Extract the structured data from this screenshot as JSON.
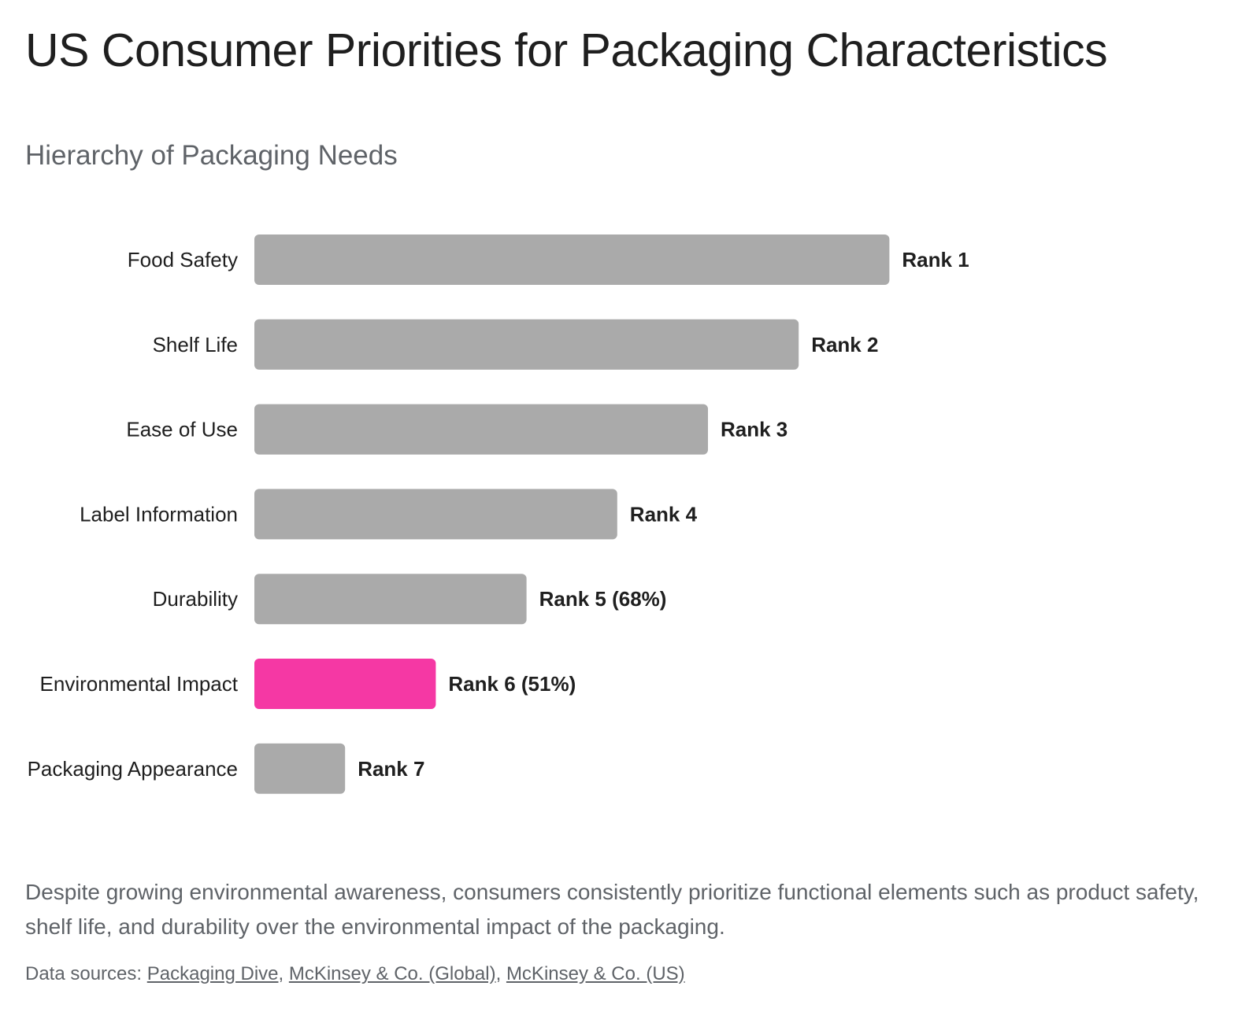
{
  "title": "US Consumer Priorities for Packaging Characteristics",
  "subtitle": "Hierarchy of Packaging Needs",
  "colors": {
    "bar_default": "#aaaaaa",
    "bar_highlight": "#f538a4"
  },
  "chart_data": {
    "type": "bar",
    "orientation": "horizontal",
    "categories": [
      "Food Safety",
      "Shelf Life",
      "Ease of Use",
      "Label Information",
      "Durability",
      "Environmental Impact",
      "Packaging Appearance"
    ],
    "values": [
      7,
      6,
      5,
      4,
      3,
      2,
      1
    ],
    "data_labels": [
      "Rank 1",
      "Rank 2",
      "Rank 3",
      "Rank 4",
      "Rank 5 (68%)",
      "Rank 6 (51%)",
      "Rank 7"
    ],
    "highlight_index": 5,
    "xlim": [
      0,
      7
    ],
    "grid": false,
    "legend": "none"
  },
  "caption": "Despite growing environmental awareness, consumers consistently prioritize functional elements such as product safety, shelf life, and durability over the environmental impact of the packaging.",
  "sources": {
    "prefix": "Data sources: ",
    "links": [
      "Packaging Dive",
      "McKinsey & Co. (Global)",
      "McKinsey & Co. (US)"
    ],
    "separator": ", "
  }
}
